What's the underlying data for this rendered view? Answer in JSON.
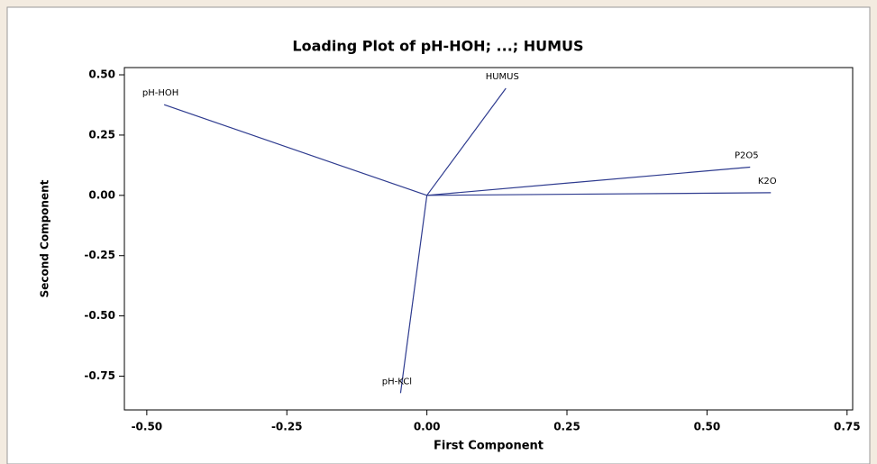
{
  "chart_data": {
    "type": "loading",
    "title": "Loading Plot of pH-HOH; ...; HUMUS",
    "x_label": "First Component",
    "y_label": "Second Component",
    "labels": [
      "pH-HOH",
      "HUMUS",
      "P2O5",
      "K2O",
      "pH-KCl"
    ],
    "x": [
      -0.469,
      0.141,
      0.577,
      0.614,
      -0.047
    ],
    "y": [
      0.376,
      0.444,
      0.117,
      0.011,
      -0.82
    ],
    "color": "#2e3b8f",
    "xlim": [
      -0.54,
      0.76
    ],
    "ylim": [
      -0.89,
      0.53
    ],
    "xticks": [
      {
        "value": -0.5,
        "label": "-0.50"
      },
      -0.25,
      {
        "value": 0,
        "label": "0.00"
      },
      0.25,
      {
        "value": 0.5,
        "label": "0.50"
      },
      0.75
    ],
    "yticks": [
      {
        "value": 0.5,
        "label": "0.50"
      },
      0.25,
      {
        "value": 0,
        "label": "0.00"
      },
      -0.25,
      {
        "value": -0.5,
        "label": "-0.50"
      },
      -0.75
    ]
  }
}
